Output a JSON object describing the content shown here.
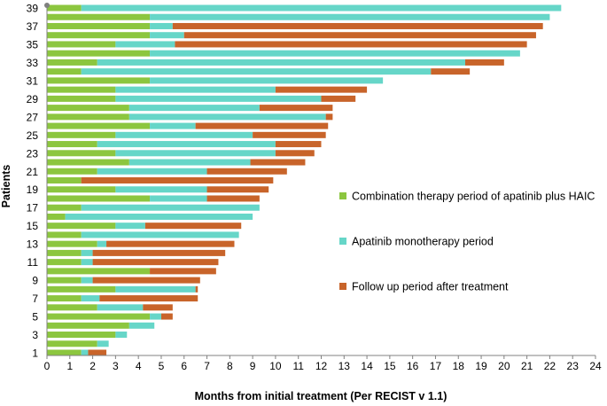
{
  "chart_data": {
    "type": "bar",
    "orientation": "horizontal-stacked",
    "title": "",
    "xlabel": "Months from initial treatment (Per RECIST v 1.1)",
    "ylabel": "Patients",
    "xlim": [
      0,
      24
    ],
    "x_ticks": [
      "0",
      "1",
      "2",
      "3",
      "4",
      "5",
      "6",
      "7",
      "8",
      "9",
      "10",
      "11",
      "12",
      "13",
      "14",
      "15",
      "16",
      "17",
      "18",
      "19",
      "20",
      "21",
      "22",
      "23",
      "24"
    ],
    "y_ticks": [
      "1",
      "3",
      "5",
      "7",
      "9",
      "11",
      "13",
      "15",
      "17",
      "19",
      "21",
      "23",
      "25",
      "27",
      "29",
      "31",
      "33",
      "35",
      "37",
      "39"
    ],
    "legend_position": "right",
    "series": [
      {
        "name": "Combination therapy period of apatinib plus HAIC",
        "color": "#8CC63F"
      },
      {
        "name": "Apatinib monotherapy period",
        "color": "#66D6C8"
      },
      {
        "name": "Follow up period after treatment",
        "color": "#C8642A"
      }
    ],
    "patients": [
      {
        "id": 1,
        "combination": 1.5,
        "monotherapy": 0.3,
        "follow_up": 0.8
      },
      {
        "id": 2,
        "combination": 2.2,
        "monotherapy": 0.5,
        "follow_up": 0
      },
      {
        "id": 3,
        "combination": 3.0,
        "monotherapy": 0.5,
        "follow_up": 0
      },
      {
        "id": 4,
        "combination": 3.6,
        "monotherapy": 1.1,
        "follow_up": 0
      },
      {
        "id": 5,
        "combination": 4.5,
        "monotherapy": 0.5,
        "follow_up": 0.5
      },
      {
        "id": 6,
        "combination": 2.2,
        "monotherapy": 2.0,
        "follow_up": 1.3
      },
      {
        "id": 7,
        "combination": 1.5,
        "monotherapy": 0.8,
        "follow_up": 4.3
      },
      {
        "id": 8,
        "combination": 3.0,
        "monotherapy": 3.5,
        "follow_up": 0.1
      },
      {
        "id": 9,
        "combination": 1.5,
        "monotherapy": 0.5,
        "follow_up": 4.7
      },
      {
        "id": 10,
        "combination": 4.5,
        "monotherapy": 0,
        "follow_up": 2.9
      },
      {
        "id": 11,
        "combination": 1.5,
        "monotherapy": 0.5,
        "follow_up": 5.5
      },
      {
        "id": 12,
        "combination": 1.5,
        "monotherapy": 0.5,
        "follow_up": 5.8
      },
      {
        "id": 13,
        "combination": 2.2,
        "monotherapy": 0.4,
        "follow_up": 5.6
      },
      {
        "id": 14,
        "combination": 1.5,
        "monotherapy": 6.9,
        "follow_up": 0
      },
      {
        "id": 15,
        "combination": 3.0,
        "monotherapy": 1.3,
        "follow_up": 4.2
      },
      {
        "id": 16,
        "combination": 0.8,
        "monotherapy": 8.2,
        "follow_up": 0
      },
      {
        "id": 17,
        "combination": 1.5,
        "monotherapy": 7.8,
        "follow_up": 0
      },
      {
        "id": 18,
        "combination": 4.5,
        "monotherapy": 2.5,
        "follow_up": 2.3
      },
      {
        "id": 19,
        "combination": 3.0,
        "monotherapy": 4.0,
        "follow_up": 2.7
      },
      {
        "id": 20,
        "combination": 1.5,
        "monotherapy": 0,
        "follow_up": 8.4
      },
      {
        "id": 21,
        "combination": 2.2,
        "monotherapy": 4.8,
        "follow_up": 3.5
      },
      {
        "id": 22,
        "combination": 3.6,
        "monotherapy": 5.3,
        "follow_up": 2.4
      },
      {
        "id": 23,
        "combination": 3.0,
        "monotherapy": 7.0,
        "follow_up": 1.7
      },
      {
        "id": 24,
        "combination": 2.2,
        "monotherapy": 7.8,
        "follow_up": 2.0
      },
      {
        "id": 25,
        "combination": 3.0,
        "monotherapy": 6.0,
        "follow_up": 3.2
      },
      {
        "id": 26,
        "combination": 4.5,
        "monotherapy": 2.0,
        "follow_up": 5.8
      },
      {
        "id": 27,
        "combination": 3.6,
        "monotherapy": 8.6,
        "follow_up": 0.3
      },
      {
        "id": 28,
        "combination": 3.6,
        "monotherapy": 5.7,
        "follow_up": 3.2
      },
      {
        "id": 29,
        "combination": 3.0,
        "monotherapy": 9.0,
        "follow_up": 1.5
      },
      {
        "id": 30,
        "combination": 3.0,
        "monotherapy": 7.0,
        "follow_up": 4.0
      },
      {
        "id": 31,
        "combination": 4.5,
        "monotherapy": 10.2,
        "follow_up": 0
      },
      {
        "id": 32,
        "combination": 1.5,
        "monotherapy": 15.3,
        "follow_up": 1.7
      },
      {
        "id": 33,
        "combination": 2.2,
        "monotherapy": 16.1,
        "follow_up": 1.7
      },
      {
        "id": 34,
        "combination": 4.5,
        "monotherapy": 16.2,
        "follow_up": 0
      },
      {
        "id": 35,
        "combination": 3.0,
        "monotherapy": 2.6,
        "follow_up": 15.4
      },
      {
        "id": 36,
        "combination": 4.5,
        "monotherapy": 1.5,
        "follow_up": 15.4
      },
      {
        "id": 37,
        "combination": 4.5,
        "monotherapy": 1.0,
        "follow_up": 16.2
      },
      {
        "id": 38,
        "combination": 4.5,
        "monotherapy": 17.5,
        "follow_up": 0
      },
      {
        "id": 39,
        "combination": 1.5,
        "monotherapy": 21.0,
        "follow_up": 0
      }
    ]
  }
}
